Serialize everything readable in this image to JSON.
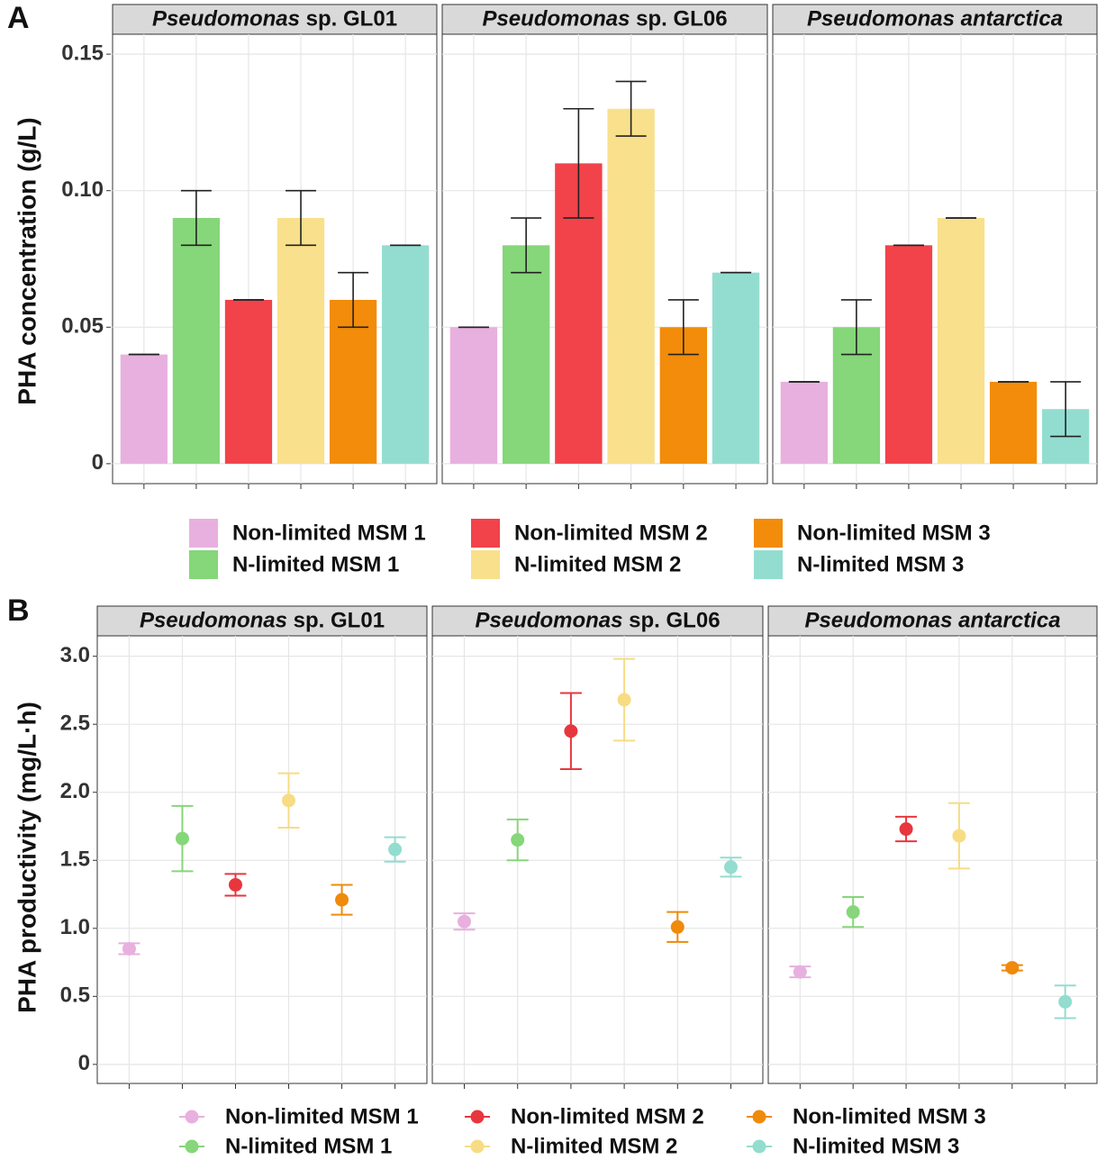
{
  "chart_data": [
    {
      "type": "bar",
      "panel": "A",
      "y_label": "PHA concentration (g/L)",
      "facets": [
        {
          "italic": "Pseudomonas",
          "plain": "sp. GL01"
        },
        {
          "italic": "Pseudomonas",
          "plain": "sp. GL06"
        },
        {
          "italic": "Pseudomonas antarctica"
        }
      ],
      "ylim": [
        -0.0073,
        0.1573
      ],
      "yticks": [
        0,
        0.05,
        {
          "value": 0.1,
          "label": "0.10"
        },
        0.15
      ],
      "grid": true,
      "series": [
        {
          "name": "Non-limited MSM 1",
          "color": "#e8b0de",
          "values": [
            0.04,
            0.05,
            0.03
          ],
          "errors": [
            0,
            0,
            0
          ]
        },
        {
          "name": "N-limited MSM 1",
          "color": "#86d67a",
          "values": [
            0.09,
            0.08,
            0.05
          ],
          "errors": [
            0.01,
            0.01,
            0.01
          ]
        },
        {
          "name": "Non-limited MSM 2",
          "color": "#f2424a",
          "values": [
            0.06,
            0.11,
            0.08
          ],
          "errors": [
            0,
            0.02,
            0
          ]
        },
        {
          "name": "N-limited MSM 2",
          "color": "#f9e08c",
          "values": [
            0.09,
            0.13,
            0.09
          ],
          "errors": [
            0.01,
            0.01,
            0
          ]
        },
        {
          "name": "Non-limited MSM 3",
          "color": "#f28c0a",
          "values": [
            0.06,
            0.05,
            0.03
          ],
          "errors": [
            0.01,
            0.01,
            0
          ]
        },
        {
          "name": "N-limited MSM 3",
          "color": "#93ddd0",
          "values": [
            0.08,
            0.07,
            0.02
          ],
          "errors": [
            0,
            0,
            0.01
          ]
        }
      ]
    },
    {
      "type": "point",
      "panel": "B",
      "y_label": "PHA productivity (mg/L·h)",
      "facets": [
        {
          "italic": "Pseudomonas",
          "plain": "sp. GL01"
        },
        {
          "italic": "Pseudomonas",
          "plain": "sp. GL06"
        },
        {
          "italic": "Pseudomonas antarctica"
        }
      ],
      "ylim": [
        -0.14,
        3.15
      ],
      "yticks": [
        0,
        0.5,
        {
          "value": 1,
          "label": "1.0"
        },
        1.5,
        {
          "value": 2,
          "label": "2.0"
        },
        2.5,
        {
          "value": 3,
          "label": "3.0"
        }
      ],
      "grid": true,
      "series": [
        {
          "name": "Non-limited MSM 1",
          "color": "#e8b0de",
          "values": [
            0.85,
            1.05,
            0.68
          ],
          "errors": [
            0.04,
            0.06,
            0.04
          ]
        },
        {
          "name": "N-limited MSM 1",
          "color": "#86d67a",
          "values": [
            1.66,
            1.65,
            1.12
          ],
          "errors": [
            0.24,
            0.15,
            0.11
          ]
        },
        {
          "name": "Non-limited MSM 2",
          "color": "#e8363e",
          "values": [
            1.32,
            2.45,
            1.73
          ],
          "errors": [
            0.08,
            0.28,
            0.09
          ]
        },
        {
          "name": "N-limited MSM 2",
          "color": "#f7dc84",
          "values": [
            1.94,
            2.68,
            1.68
          ],
          "errors": [
            0.2,
            0.3,
            0.24
          ]
        },
        {
          "name": "Non-limited MSM 3",
          "color": "#ef8a0c",
          "values": [
            1.21,
            1.01,
            0.71
          ],
          "errors": [
            0.11,
            0.11,
            0.02
          ]
        },
        {
          "name": "N-limited MSM 3",
          "color": "#93ddd0",
          "values": [
            1.58,
            1.45,
            0.46
          ],
          "errors": [
            0.09,
            0.07,
            0.12
          ]
        }
      ]
    }
  ]
}
